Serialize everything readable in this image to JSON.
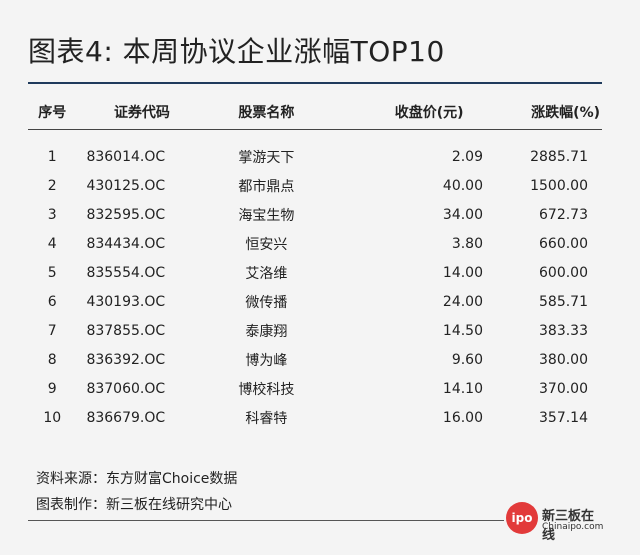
{
  "title": "图表4: 本周协议企业涨幅TOP10",
  "table": {
    "headers": {
      "no": "序号",
      "code": "证券代码",
      "name": "股票名称",
      "price": "收盘价(元)",
      "change": "涨跌幅(%)"
    },
    "rows": [
      {
        "no": "1",
        "code": "836014.OC",
        "name": "掌游天下",
        "price": "2.09",
        "change": "2885.71"
      },
      {
        "no": "2",
        "code": "430125.OC",
        "name": "都市鼎点",
        "price": "40.00",
        "change": "1500.00"
      },
      {
        "no": "3",
        "code": "832595.OC",
        "name": "海宝生物",
        "price": "34.00",
        "change": "672.73"
      },
      {
        "no": "4",
        "code": "834434.OC",
        "name": "恒安兴",
        "price": "3.80",
        "change": "660.00"
      },
      {
        "no": "5",
        "code": "835554.OC",
        "name": "艾洛维",
        "price": "14.00",
        "change": "600.00"
      },
      {
        "no": "6",
        "code": "430193.OC",
        "name": "微传播",
        "price": "24.00",
        "change": "585.71"
      },
      {
        "no": "7",
        "code": "837855.OC",
        "name": "泰康翔",
        "price": "14.50",
        "change": "383.33"
      },
      {
        "no": "8",
        "code": "836392.OC",
        "name": "博为峰",
        "price": "9.60",
        "change": "380.00"
      },
      {
        "no": "9",
        "code": "837060.OC",
        "name": "博校科技",
        "price": "14.10",
        "change": "370.00"
      },
      {
        "no": "10",
        "code": "836679.OC",
        "name": "科睿特",
        "price": "16.00",
        "change": "357.14"
      }
    ]
  },
  "footer": {
    "source": "资料来源：东方财富Choice数据",
    "maker": "图表制作：新三板在线研究中心"
  },
  "logo": {
    "badge": "ipo",
    "name": "新三板在线",
    "site": "Chinaipo.com",
    "color": "#e23a3a"
  }
}
